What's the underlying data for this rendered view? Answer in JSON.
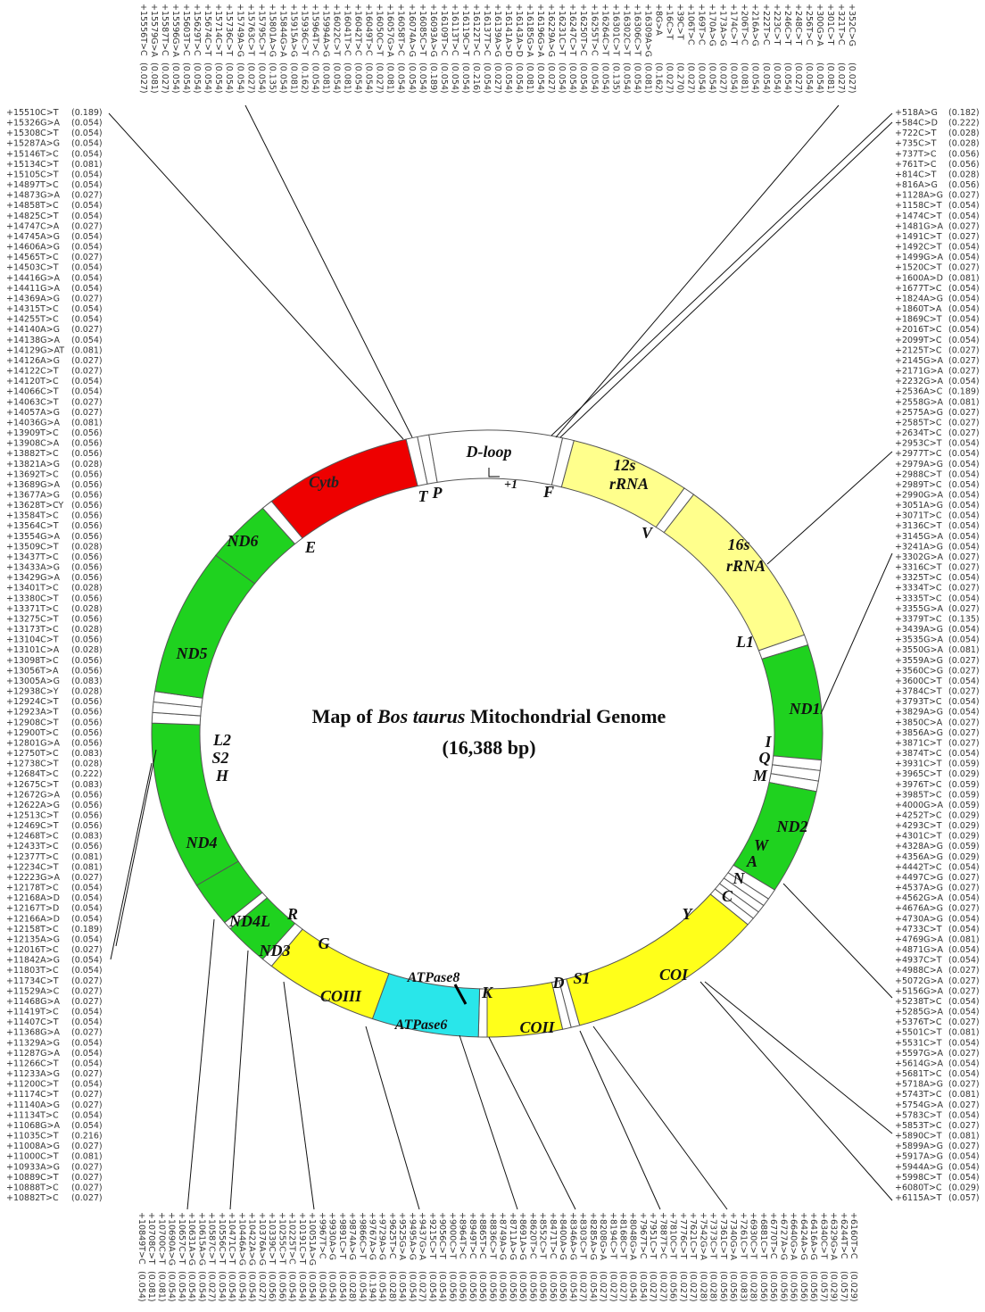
{
  "title": {
    "prefix": "Map of",
    "species": "Bos taurus",
    "suffix": "Mitochondrial Genome"
  },
  "subtitle": "(16,388 bp)",
  "genes": {
    "dloop": "D-loop",
    "start": "+1",
    "rrna12_a": "12s",
    "rrna12_b": "rRNA",
    "rrna16_a": "16s",
    "rrna16_b": "rRNA",
    "nd1": "ND1",
    "nd2": "ND2",
    "coi": "COI",
    "coii": "COII",
    "atp8": "ATPase8",
    "atp6": "ATPase6",
    "coiii": "COIII",
    "nd3": "ND3",
    "nd4l": "ND4L",
    "nd4": "ND4",
    "nd5": "ND5",
    "nd6": "ND6",
    "cytb": "Cytb"
  },
  "trnas": {
    "F": "F",
    "V": "V",
    "L1": "L1",
    "I": "I",
    "Q": "Q",
    "M": "M",
    "W": "W",
    "A": "A",
    "N": "N",
    "C": "C",
    "Y": "Y",
    "S1": "S1",
    "D": "D",
    "K": "K",
    "G": "G",
    "R": "R",
    "H": "H",
    "S2": "S2",
    "L2": "L2",
    "E": "E",
    "T": "T",
    "P": "P"
  },
  "left_variants": [
    [
      "+15510C>T",
      "(0.189)"
    ],
    [
      "+15326G>A",
      "(0.054)"
    ],
    [
      "+15308C>T",
      "(0.054)"
    ],
    [
      "+15287A>G",
      "(0.054)"
    ],
    [
      "+15146T>C",
      "(0.054)"
    ],
    [
      "+15134C>T",
      "(0.081)"
    ],
    [
      "+15105C>T",
      "(0.054)"
    ],
    [
      "+14897T>C",
      "(0.054)"
    ],
    [
      "+14873G>A",
      "(0.027)"
    ],
    [
      "+14858T>C",
      "(0.054)"
    ],
    [
      "+14825C>T",
      "(0.054)"
    ],
    [
      "+14747C>A",
      "(0.027)"
    ],
    [
      "+14745A>G",
      "(0.054)"
    ],
    [
      "+14606A>G",
      "(0.054)"
    ],
    [
      "+14565T>C",
      "(0.027)"
    ],
    [
      "+14503C>T",
      "(0.054)"
    ],
    [
      "+14416G>A",
      "(0.054)"
    ],
    [
      "+14411G>A",
      "(0.054)"
    ],
    [
      "+14369A>G",
      "(0.027)"
    ],
    [
      "+14315T>C",
      "(0.054)"
    ],
    [
      "+14255T>C",
      "(0.054)"
    ],
    [
      "+14140A>G",
      "(0.027)"
    ],
    [
      "+14138G>A",
      "(0.054)"
    ],
    [
      "+14129G>AT",
      "(0.081)"
    ],
    [
      "+14126A>G",
      "(0.027)"
    ],
    [
      "+14122C>T",
      "(0.027)"
    ],
    [
      "+14120T>C",
      "(0.054)"
    ],
    [
      "+14066C>T",
      "(0.054)"
    ],
    [
      "+14063C>T",
      "(0.027)"
    ],
    [
      "+14057A>G",
      "(0.027)"
    ],
    [
      "+14036G>A",
      "(0.081)"
    ],
    [
      "+13909T>C",
      "(0.056)"
    ],
    [
      "+13908C>A",
      "(0.056)"
    ],
    [
      "+13882T>C",
      "(0.056)"
    ],
    [
      "+13821A>G",
      "(0.028)"
    ],
    [
      "+13692T>C",
      "(0.056)"
    ],
    [
      "+13689G>A",
      "(0.056)"
    ],
    [
      "+13677A>G",
      "(0.056)"
    ],
    [
      "+13628T>CY",
      "(0.056)"
    ],
    [
      "+13584T>C",
      "(0.056)"
    ],
    [
      "+13564C>T",
      "(0.056)"
    ],
    [
      "+13554G>A",
      "(0.056)"
    ],
    [
      "+13509C>T",
      "(0.028)"
    ],
    [
      "+13437T>C",
      "(0.056)"
    ],
    [
      "+13433A>G",
      "(0.056)"
    ],
    [
      "+13429G>A",
      "(0.056)"
    ],
    [
      "+13401T>C",
      "(0.028)"
    ],
    [
      "+13380C>T",
      "(0.056)"
    ],
    [
      "+13371T>C",
      "(0.028)"
    ],
    [
      "+13275C>T",
      "(0.056)"
    ],
    [
      "+13173T>C",
      "(0.028)"
    ],
    [
      "+13104C>T",
      "(0.056)"
    ],
    [
      "+13101C>A",
      "(0.028)"
    ],
    [
      "+13098T>C",
      "(0.056)"
    ],
    [
      "+13056T>A",
      "(0.056)"
    ],
    [
      "+13005A>G",
      "(0.083)"
    ],
    [
      "+12938C>Y",
      "(0.028)"
    ],
    [
      "+12924C>T",
      "(0.056)"
    ],
    [
      "+12923A>T",
      "(0.056)"
    ],
    [
      "+12908C>T",
      "(0.056)"
    ],
    [
      "+12900T>C",
      "(0.056)"
    ],
    [
      "+12801G>A",
      "(0.056)"
    ],
    [
      "+12750T>C",
      "(0.083)"
    ],
    [
      "+12738C>T",
      "(0.028)"
    ],
    [
      "+12684T>C",
      "(0.222)"
    ],
    [
      "+12675C>T",
      "(0.083)"
    ],
    [
      "+12672G>A",
      "(0.056)"
    ],
    [
      "+12622A>G",
      "(0.056)"
    ],
    [
      "+12513C>T",
      "(0.056)"
    ],
    [
      "+12469C>T",
      "(0.056)"
    ],
    [
      "+12468T>C",
      "(0.083)"
    ],
    [
      "+12433T>C",
      "(0.056)"
    ],
    [
      "+12377T>C",
      "(0.081)"
    ],
    [
      "+12234C>T",
      "(0.081)"
    ],
    [
      "+12223G>A",
      "(0.027)"
    ],
    [
      "+12178T>C",
      "(0.054)"
    ],
    [
      "+12168A>D",
      "(0.054)"
    ],
    [
      "+12167T>D",
      "(0.054)"
    ],
    [
      "+12166A>D",
      "(0.054)"
    ],
    [
      "+12158T>C",
      "(0.189)"
    ],
    [
      "+12135A>G",
      "(0.054)"
    ],
    [
      "+12016T>C",
      "(0.027)"
    ],
    [
      "+11842A>G",
      "(0.054)"
    ],
    [
      "+11803T>C",
      "(0.054)"
    ],
    [
      "+11734C>T",
      "(0.027)"
    ],
    [
      "+11529A>C",
      "(0.027)"
    ],
    [
      "+11468G>A",
      "(0.027)"
    ],
    [
      "+11419T>C",
      "(0.054)"
    ],
    [
      "+11407C>T",
      "(0.054)"
    ],
    [
      "+11368G>A",
      "(0.027)"
    ],
    [
      "+11329A>G",
      "(0.054)"
    ],
    [
      "+11287G>A",
      "(0.054)"
    ],
    [
      "+11266C>T",
      "(0.054)"
    ],
    [
      "+11233A>G",
      "(0.027)"
    ],
    [
      "+11200C>T",
      "(0.054)"
    ],
    [
      "+11174C>T",
      "(0.027)"
    ],
    [
      "+11140A>G",
      "(0.027)"
    ],
    [
      "+11134T>C",
      "(0.054)"
    ],
    [
      "+11068G>A",
      "(0.054)"
    ],
    [
      "+11035C>T",
      "(0.216)"
    ],
    [
      "+11008A>G",
      "(0.027)"
    ],
    [
      "+11000C>T",
      "(0.081)"
    ],
    [
      "+10933A>G",
      "(0.027)"
    ],
    [
      "+10889C>T",
      "(0.027)"
    ],
    [
      "+10888T>C",
      "(0.027)"
    ],
    [
      "+10882T>C",
      "(0.027)"
    ]
  ],
  "right_variants": [
    [
      "+518A>G",
      "(0.182)"
    ],
    [
      "+584C>D",
      "(0.222)"
    ],
    [
      "+722C>T",
      "(0.028)"
    ],
    [
      "+735C>T",
      "(0.028)"
    ],
    [
      "+737T>C",
      "(0.056)"
    ],
    [
      "+761T>C",
      "(0.056)"
    ],
    [
      "+814C>T",
      "(0.028)"
    ],
    [
      "+816A>G",
      "(0.056)"
    ],
    [
      "+1128A>G",
      "(0.027)"
    ],
    [
      "+1158C>T",
      "(0.054)"
    ],
    [
      "+1474C>T",
      "(0.054)"
    ],
    [
      "+1481G>A",
      "(0.027)"
    ],
    [
      "+1491C>T",
      "(0.027)"
    ],
    [
      "+1492C>T",
      "(0.054)"
    ],
    [
      "+1499G>A",
      "(0.054)"
    ],
    [
      "+1520C>T",
      "(0.027)"
    ],
    [
      "+1600A>D",
      "(0.081)"
    ],
    [
      "+1677T>C",
      "(0.054)"
    ],
    [
      "+1824A>G",
      "(0.054)"
    ],
    [
      "+1860T>A",
      "(0.054)"
    ],
    [
      "+1869C>T",
      "(0.054)"
    ],
    [
      "+2016T>C",
      "(0.054)"
    ],
    [
      "+2099T>C",
      "(0.054)"
    ],
    [
      "+2125T>C",
      "(0.027)"
    ],
    [
      "+2145G>A",
      "(0.027)"
    ],
    [
      "+2171G>A",
      "(0.027)"
    ],
    [
      "+2232G>A",
      "(0.054)"
    ],
    [
      "+2536A>C",
      "(0.189)"
    ],
    [
      "+2558G>A",
      "(0.081)"
    ],
    [
      "+2575A>G",
      "(0.027)"
    ],
    [
      "+2585T>C",
      "(0.027)"
    ],
    [
      "+2634T>C",
      "(0.027)"
    ],
    [
      "+2953C>T",
      "(0.054)"
    ],
    [
      "+2977T>C",
      "(0.054)"
    ],
    [
      "+2979A>G",
      "(0.054)"
    ],
    [
      "+2988C>T",
      "(0.054)"
    ],
    [
      "+2989T>C",
      "(0.054)"
    ],
    [
      "+2990G>A",
      "(0.054)"
    ],
    [
      "+3051A>G",
      "(0.054)"
    ],
    [
      "+3071T>C",
      "(0.054)"
    ],
    [
      "+3136C>T",
      "(0.054)"
    ],
    [
      "+3145G>A",
      "(0.054)"
    ],
    [
      "+3241A>G",
      "(0.054)"
    ],
    [
      "+3302G>A",
      "(0.027)"
    ],
    [
      "+3316C>T",
      "(0.027)"
    ],
    [
      "+3325T>C",
      "(0.054)"
    ],
    [
      "+3334T>C",
      "(0.027)"
    ],
    [
      "+3335T>C",
      "(0.054)"
    ],
    [
      "+3355G>A",
      "(0.027)"
    ],
    [
      "+3379T>C",
      "(0.135)"
    ],
    [
      "+3439A>G",
      "(0.054)"
    ],
    [
      "+3535G>A",
      "(0.054)"
    ],
    [
      "+3550G>A",
      "(0.081)"
    ],
    [
      "+3559A>G",
      "(0.027)"
    ],
    [
      "+3560C>G",
      "(0.027)"
    ],
    [
      "+3600C>T",
      "(0.054)"
    ],
    [
      "+3784C>T",
      "(0.027)"
    ],
    [
      "+3793T>C",
      "(0.054)"
    ],
    [
      "+3829A>G",
      "(0.054)"
    ],
    [
      "+3850C>A",
      "(0.027)"
    ],
    [
      "+3856A>G",
      "(0.027)"
    ],
    [
      "+3871C>T",
      "(0.027)"
    ],
    [
      "+3874T>C",
      "(0.054)"
    ],
    [
      "+3931C>T",
      "(0.059)"
    ],
    [
      "+3965C>T",
      "(0.029)"
    ],
    [
      "+3976T>C",
      "(0.059)"
    ],
    [
      "+3985T>C",
      "(0.059)"
    ],
    [
      "+4000G>A",
      "(0.059)"
    ],
    [
      "+4252T>C",
      "(0.029)"
    ],
    [
      "+4293C>T",
      "(0.029)"
    ],
    [
      "+4301C>T",
      "(0.029)"
    ],
    [
      "+4328A>G",
      "(0.059)"
    ],
    [
      "+4356A>G",
      "(0.029)"
    ],
    [
      "+4442T>C",
      "(0.054)"
    ],
    [
      "+4497C>G",
      "(0.027)"
    ],
    [
      "+4537A>G",
      "(0.027)"
    ],
    [
      "+4562G>A",
      "(0.054)"
    ],
    [
      "+4676A>G",
      "(0.027)"
    ],
    [
      "+4730A>G",
      "(0.054)"
    ],
    [
      "+4733C>T",
      "(0.054)"
    ],
    [
      "+4769G>A",
      "(0.081)"
    ],
    [
      "+4871G>A",
      "(0.054)"
    ],
    [
      "+4937C>T",
      "(0.054)"
    ],
    [
      "+4988C>A",
      "(0.027)"
    ],
    [
      "+5072G>A",
      "(0.027)"
    ],
    [
      "+5156G>A",
      "(0.027)"
    ],
    [
      "+5238T>C",
      "(0.054)"
    ],
    [
      "+5285G>A",
      "(0.054)"
    ],
    [
      "+5376T>C",
      "(0.027)"
    ],
    [
      "+5501C>T",
      "(0.081)"
    ],
    [
      "+5531C>T",
      "(0.054)"
    ],
    [
      "+5597G>A",
      "(0.027)"
    ],
    [
      "+5614G>A",
      "(0.054)"
    ],
    [
      "+5681T>C",
      "(0.054)"
    ],
    [
      "+5718A>G",
      "(0.027)"
    ],
    [
      "+5743T>C",
      "(0.081)"
    ],
    [
      "+5754G>A",
      "(0.027)"
    ],
    [
      "+5783C>T",
      "(0.054)"
    ],
    [
      "+5853T>C",
      "(0.027)"
    ],
    [
      "+5890C>T",
      "(0.081)"
    ],
    [
      "+5899A>G",
      "(0.027)"
    ],
    [
      "+5917A>G",
      "(0.054)"
    ],
    [
      "+5944A>G",
      "(0.054)"
    ],
    [
      "+5998C>T",
      "(0.054)"
    ],
    [
      "+6080T>C",
      "(0.029)"
    ],
    [
      "+6115A>T",
      "(0.057)"
    ]
  ],
  "top_variants": [
    [
      "+15556T>C",
      "(0.027)"
    ],
    [
      "+15579G>A",
      "(0.081)"
    ],
    [
      "+15587T>C",
      "(0.027)"
    ],
    [
      "+15596G>A",
      "(0.054)"
    ],
    [
      "+15603T>C",
      "(0.054)"
    ],
    [
      "+15629T>C",
      "(0.054)"
    ],
    [
      "+15674C>T",
      "(0.054)"
    ],
    [
      "+15714C>T",
      "(0.054)"
    ],
    [
      "+15736C>T",
      "(0.054)"
    ],
    [
      "+15749A>G",
      "(0.054)"
    ],
    [
      "+15763C>T",
      "(0.027)"
    ],
    [
      "+15795C>T",
      "(0.054)"
    ],
    [
      "+15801A>G",
      "(0.135)"
    ],
    [
      "+15844G>A",
      "(0.054)"
    ],
    [
      "+15915A>G",
      "(0.081)"
    ],
    [
      "+15936C>T",
      "(0.162)"
    ],
    [
      "+15964T>C",
      "(0.054)"
    ],
    [
      "+15994A>G",
      "(0.081)"
    ],
    [
      "+16022C>T",
      "(0.054)"
    ],
    [
      "+16041T>C",
      "(0.081)"
    ],
    [
      "+16042T>C",
      "(0.054)"
    ],
    [
      "+16049T>C",
      "(0.054)"
    ],
    [
      "+16050C>T",
      "(0.027)"
    ],
    [
      "+16057G>A",
      "(0.081)"
    ],
    [
      "+16058T>C",
      "(0.054)"
    ],
    [
      "+16074A>G",
      "(0.054)"
    ],
    [
      "+16085C>T",
      "(0.054)"
    ],
    [
      "+16093A>G",
      "(0.189)"
    ],
    [
      "+16109T>C",
      "(0.054)"
    ],
    [
      "+16113T>C",
      "(0.054)"
    ],
    [
      "+16119C>T",
      "(0.054)"
    ],
    [
      "+16122T>C",
      "(0.216)"
    ],
    [
      "+16137T>C",
      "(0.054)"
    ],
    [
      "+16139A>G",
      "(0.027)"
    ],
    [
      "+16141A>D",
      "(0.054)"
    ],
    [
      "+16143A>D",
      "(0.054)"
    ],
    [
      "+16185G>A",
      "(0.081)"
    ],
    [
      "+16196G>A",
      "(0.054)"
    ],
    [
      "+16229A>G",
      "(0.027)"
    ],
    [
      "+16231C>T",
      "(0.054)"
    ],
    [
      "+16247C>T",
      "(0.054)"
    ],
    [
      "+16250T>C",
      "(0.054)"
    ],
    [
      "+16255T>C",
      "(0.054)"
    ],
    [
      "+16264C>T",
      "(0.054)"
    ],
    [
      "+16301C>T",
      "(0.135)"
    ],
    [
      "+16302C>T",
      "(0.054)"
    ],
    [
      "+16306C>T",
      "(0.054)"
    ],
    [
      "+16309A>G",
      "(0.081)"
    ],
    [
      "+8G>A",
      "(0.162)"
    ],
    [
      "+16C>T",
      "(0.027)"
    ],
    [
      "+39C>T",
      "(0.270)"
    ],
    [
      "+106T>C",
      "(0.027)"
    ],
    [
      "+169T>C",
      "(0.054)"
    ],
    [
      "+170A>G",
      "(0.054)"
    ],
    [
      "+173A>G",
      "(0.027)"
    ],
    [
      "+174C>T",
      "(0.054)"
    ],
    [
      "+206T>C",
      "(0.081)"
    ],
    [
      "+216A>G",
      "(0.054)"
    ],
    [
      "+222T>C",
      "(0.054)"
    ],
    [
      "+223C>T",
      "(0.054)"
    ],
    [
      "+246C>T",
      "(0.054)"
    ],
    [
      "+248C>T",
      "(0.027)"
    ],
    [
      "+256T>C",
      "(0.054)"
    ],
    [
      "+300G>A",
      "(0.054)"
    ],
    [
      "+301C>T",
      "(0.081)"
    ],
    [
      "+321T>C",
      "(0.027)"
    ],
    [
      "+352C>G",
      "(0.027)"
    ]
  ],
  "bottom_variants": [
    [
      "+10849T>C",
      "(0.054)"
    ],
    [
      "+10708C>T",
      "(0.081)"
    ],
    [
      "+10700C>T",
      "(0.081)"
    ],
    [
      "+10690A>G",
      "(0.054)"
    ],
    [
      "+10657C>T",
      "(0.054)"
    ],
    [
      "+10631A>G",
      "(0.054)"
    ],
    [
      "+10615A>G",
      "(0.054)"
    ],
    [
      "+10587C>T",
      "(0.027)"
    ],
    [
      "+10556C>T",
      "(0.054)"
    ],
    [
      "+10471C>T",
      "(0.054)"
    ],
    [
      "+10446A>G",
      "(0.054)"
    ],
    [
      "+10422A>G",
      "(0.054)"
    ],
    [
      "+10376A>G",
      "(0.027)"
    ],
    [
      "+10339C>T",
      "(0.056)"
    ],
    [
      "+10255C>T",
      "(0.056)"
    ],
    [
      "+10225T>C",
      "(0.054)"
    ],
    [
      "+10191C>T",
      "(0.054)"
    ],
    [
      "+10051A>G",
      "(0.054)"
    ],
    [
      "+9967T>C",
      "(0.054)"
    ],
    [
      "+9930A>G",
      "(0.054)"
    ],
    [
      "+9891C>T",
      "(0.054)"
    ],
    [
      "+9874A>G",
      "(0.028)"
    ],
    [
      "+9866C>T",
      "(0.054)"
    ],
    [
      "+9767A>G",
      "(0.194)"
    ],
    [
      "+9729A>G",
      "(0.054)"
    ],
    [
      "+9625T>C",
      "(0.028)"
    ],
    [
      "+9525G>A",
      "(0.054)"
    ],
    [
      "+9495A>G",
      "(0.054)"
    ],
    [
      "+9437G>A",
      "(0.027)"
    ],
    [
      "+9215C>T",
      "(0.054)"
    ],
    [
      "+9056C>T",
      "(0.054)"
    ],
    [
      "+9000C>T",
      "(0.056)"
    ],
    [
      "+8964T>C",
      "(0.056)"
    ],
    [
      "+8949T>C",
      "(0.056)"
    ],
    [
      "+8865T>C",
      "(0.056)"
    ],
    [
      "+8836C>T",
      "(0.056)"
    ],
    [
      "+8749A>G",
      "(0.056)"
    ],
    [
      "+8711A>G",
      "(0.056)"
    ],
    [
      "+8691A>G",
      "(0.056)"
    ],
    [
      "+8620T>C",
      "(0.056)"
    ],
    [
      "+8552C>T",
      "(0.056)"
    ],
    [
      "+8471T>C",
      "(0.056)"
    ],
    [
      "+8400A>G",
      "(0.056)"
    ],
    [
      "+8346A>G",
      "(0.054)"
    ],
    [
      "+8303C>T",
      "(0.027)"
    ],
    [
      "+8285A>G",
      "(0.054)"
    ],
    [
      "+8208G>A",
      "(0.027)"
    ],
    [
      "+8194C>T",
      "(0.027)"
    ],
    [
      "+8168C>T",
      "(0.027)"
    ],
    [
      "+8048G>A",
      "(0.054)"
    ],
    [
      "+7967T>C",
      "(0.054)"
    ],
    [
      "+7951C>T",
      "(0.027)"
    ],
    [
      "+7887T>C",
      "(0.027)"
    ],
    [
      "+7810C>T",
      "(0.056)"
    ],
    [
      "+7776C>T",
      "(0.027)"
    ],
    [
      "+7621C>T",
      "(0.027)"
    ],
    [
      "+7542G>A",
      "(0.028)"
    ],
    [
      "+7373C>T",
      "(0.028)"
    ],
    [
      "+7361C>T",
      "(0.056)"
    ],
    [
      "+7340G>A",
      "(0.056)"
    ],
    [
      "+7261C>T",
      "(0.083)"
    ],
    [
      "+6930C>T",
      "(0.028)"
    ],
    [
      "+6881C>T",
      "(0.056)"
    ],
    [
      "+6770T>C",
      "(0.056)"
    ],
    [
      "+6727A>G",
      "(0.056)"
    ],
    [
      "+6640G>A",
      "(0.056)"
    ],
    [
      "+6424A>G",
      "(0.056)"
    ],
    [
      "+6416A>G",
      "(0.056)"
    ],
    [
      "+6340C>T",
      "(0.057)"
    ],
    [
      "+6329G>A",
      "(0.029)"
    ],
    [
      "+6244T>C",
      "(0.057)"
    ],
    [
      "+6160T>C",
      "(0.029)"
    ]
  ]
}
